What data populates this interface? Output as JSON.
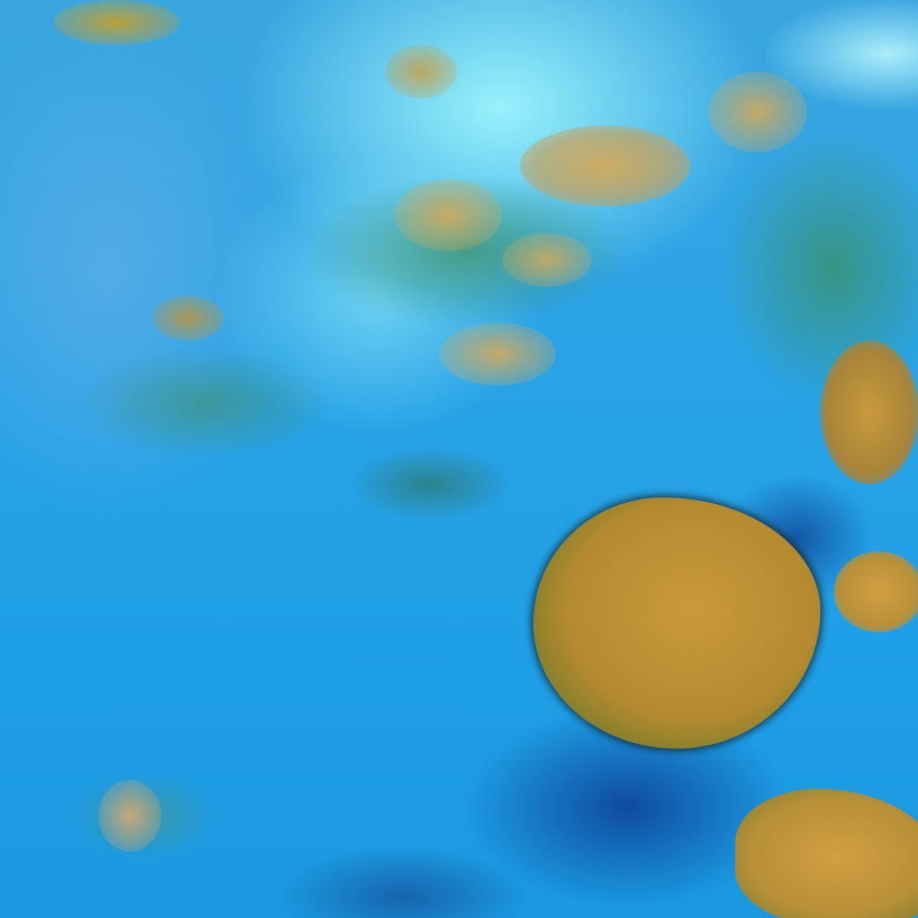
{
  "image": {
    "kind": "false-color satellite cloud imagery",
    "colors": {
      "ocean": "#2aa3e6",
      "high_cloud": "#b58a30",
      "thin_cloud": "#aaffff",
      "vegetation_tone": "#3c8c5a",
      "shadow": "#0a2882"
    }
  }
}
